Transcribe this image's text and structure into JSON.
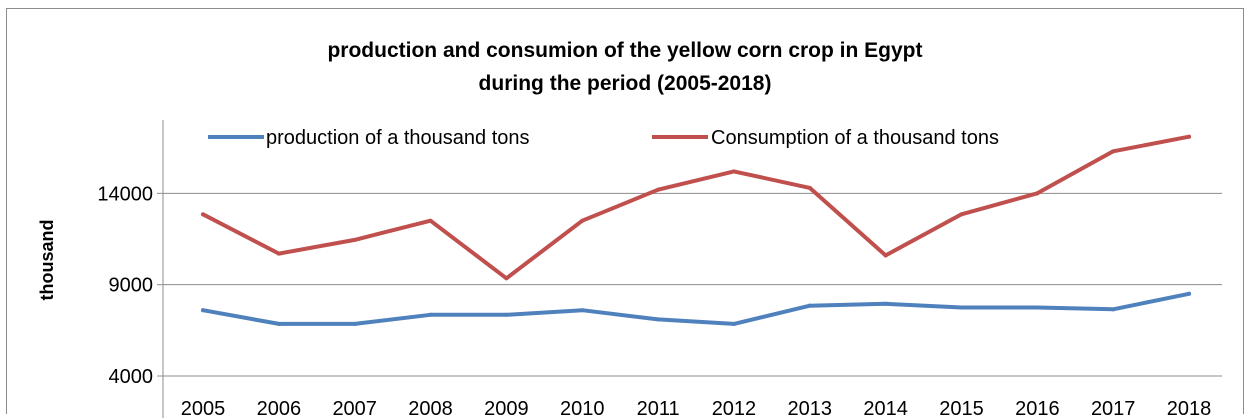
{
  "chart_data": {
    "type": "line",
    "title_lines": [
      "production and consumion of the yellow corn crop in Egypt",
      "during the period (2005-2018)"
    ],
    "ylabel": "thousand",
    "xlabel": "",
    "categories": [
      "2005",
      "2006",
      "2007",
      "2008",
      "2009",
      "2010",
      "2011",
      "2012",
      "2013",
      "2014",
      "2015",
      "2016",
      "2017",
      "2018"
    ],
    "y_ticks": [
      4000,
      9000,
      14000
    ],
    "y_tick_labels": [
      "4000",
      "9000",
      "14000"
    ],
    "ylim": [
      4000,
      19000
    ],
    "grid": "horizontal",
    "legend_position": "top",
    "series": [
      {
        "name": "production of a thousand tons",
        "color": "#4f81bd",
        "values": [
          7600,
          6850,
          6850,
          7350,
          7350,
          7600,
          7100,
          6850,
          7850,
          7950,
          7750,
          7750,
          7650,
          8500
        ]
      },
      {
        "name": "Consumption of a thousand tons",
        "color": "#c0504d",
        "values": [
          12850,
          10700,
          11450,
          12500,
          9350,
          12500,
          14200,
          15200,
          14300,
          10600,
          12850,
          14000,
          16300,
          17100
        ]
      }
    ]
  }
}
